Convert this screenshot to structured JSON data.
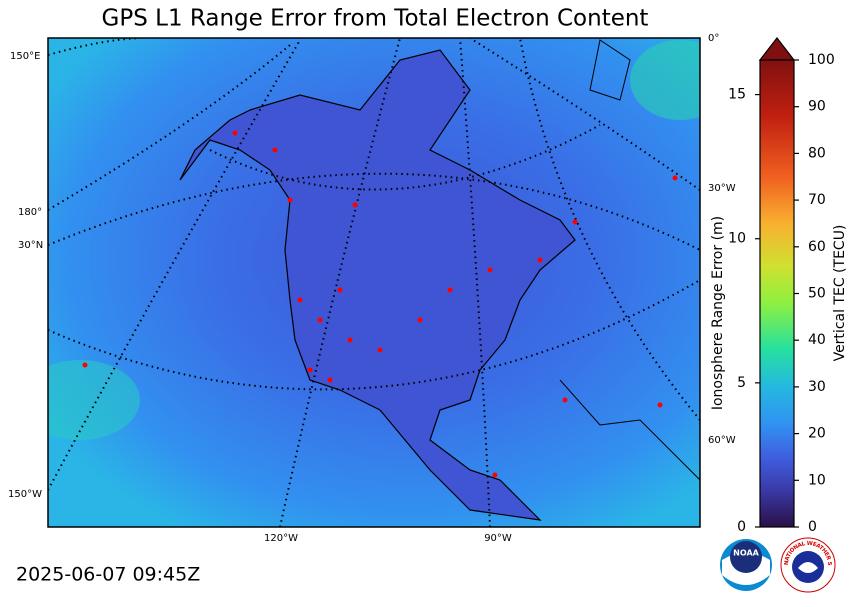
{
  "title": "GPS L1 Range Error from Total Electron Content",
  "timestamp": "2025-06-07 09:45Z",
  "map_labels": {
    "lon_150e": "150°E",
    "lon_180": "180°",
    "lat_30n": "30°N",
    "lon_150w": "150°W",
    "lon_0": "0°",
    "lon_30w": "30°W",
    "lon_60w": "60°W",
    "lon_120w": "120°W",
    "lon_90w": "90°W"
  },
  "colorbar": {
    "left_label": "Ionosphere Range Error (m)",
    "left_lim": [
      0,
      16.2
    ],
    "left_ticks": [
      0,
      5,
      10,
      15
    ],
    "right_label": "Vertical TEC (TECU)",
    "right_lim": [
      0,
      100
    ],
    "right_ticks": [
      0,
      10,
      20,
      30,
      40,
      50,
      60,
      70,
      80,
      90,
      100
    ]
  },
  "logos": {
    "noaa": "NOAA",
    "nws": "NATIONAL WEATHER SERVICE"
  }
}
